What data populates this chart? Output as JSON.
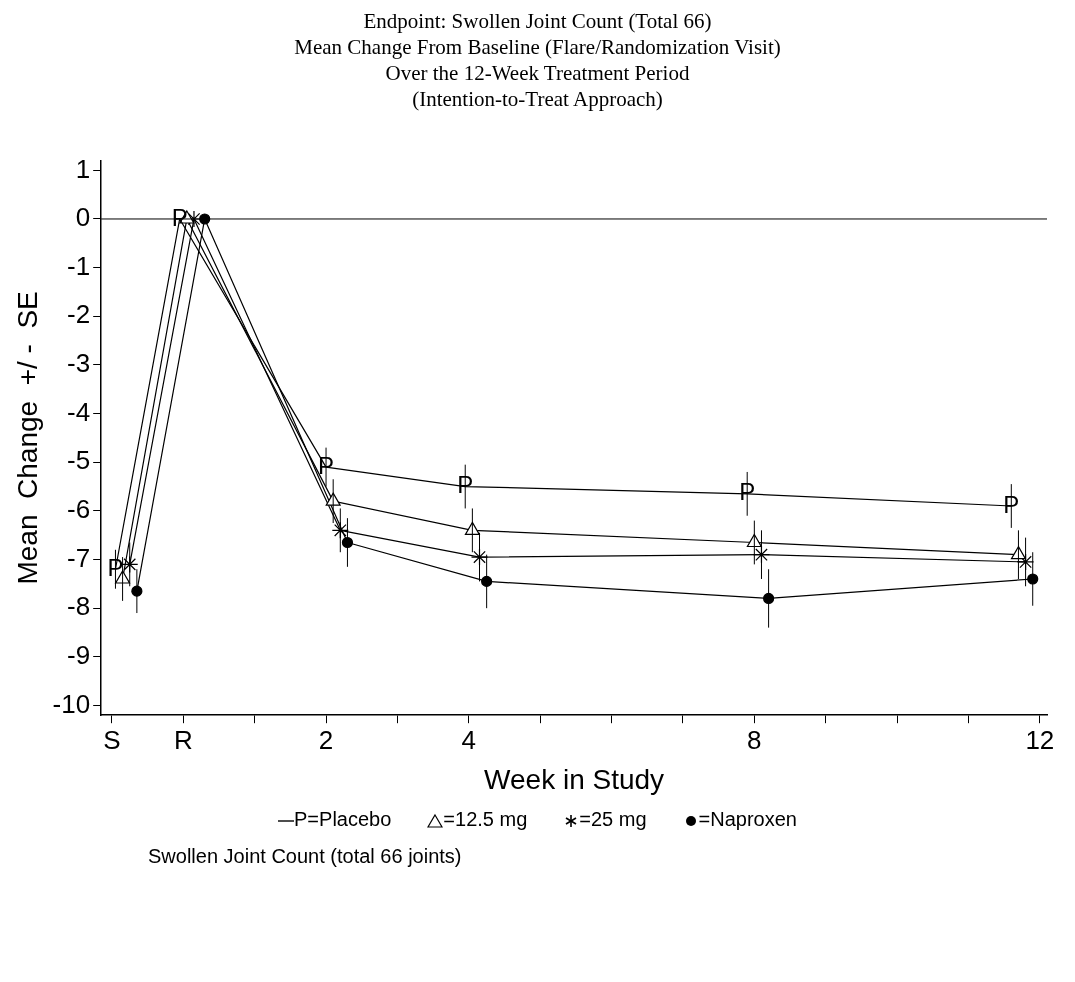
{
  "chart_data": {
    "type": "line",
    "title": "Endpoint:  Swollen Joint Count (Total 66)",
    "subtitle": "Mean Change From Baseline (Flare/Randomization Visit)\nOver the 12-Week Treatment Period\n(Intention-to-Treat Approach)",
    "xlabel": "Week in Study",
    "ylabel": "Mean  Change  +/ -  SE",
    "xlim": [
      -1.15,
      12.1
    ],
    "xticks": [
      {
        "value": -1,
        "label": "S"
      },
      {
        "value": 0,
        "label": "R"
      },
      {
        "value": 1,
        "label": null
      },
      2,
      {
        "value": 3,
        "label": null
      },
      4,
      {
        "value": 5,
        "label": null
      },
      {
        "value": 6,
        "label": null
      },
      {
        "value": 7,
        "label": null
      },
      8,
      {
        "value": 9,
        "label": null
      },
      {
        "value": 10,
        "label": null
      },
      {
        "value": 11,
        "label": null
      },
      12
    ],
    "ylim": [
      -10.2,
      1.2
    ],
    "yticks": [
      -10,
      -9,
      -8,
      -7,
      -6,
      -5,
      -4,
      -3,
      -2,
      -1,
      0,
      1
    ],
    "grid": false,
    "legend": "bottom",
    "ref_lines": [
      {
        "axis": "y",
        "value": 0,
        "color": "#000000"
      }
    ],
    "series": [
      {
        "name": "P=Placebo",
        "color": "#000000",
        "marker": "none",
        "x": [
          -0.95,
          -0.05,
          2.0,
          3.95,
          7.9,
          11.6
        ],
        "values": [
          -7.2,
          0,
          -5.1,
          -5.5,
          -5.65,
          -5.9
        ],
        "errors": [
          0.4,
          null,
          0.4,
          0.45,
          0.45,
          0.45
        ]
      },
      {
        "name": "=12.5 mg",
        "color": "#000000",
        "marker": "triangle",
        "x": [
          -0.85,
          0.05,
          2.1,
          4.05,
          8.0,
          11.7
        ],
        "values": [
          -7.4,
          0,
          -5.8,
          -6.4,
          -6.65,
          -6.9
        ],
        "errors": [
          0.45,
          null,
          0.45,
          0.45,
          0.45,
          0.5
        ]
      },
      {
        "name": "=25 mg",
        "color": "#000000",
        "marker": "cross",
        "x": [
          -0.75,
          0.15,
          2.2,
          4.15,
          8.1,
          11.8
        ],
        "values": [
          -7.1,
          0,
          -6.4,
          -6.95,
          -6.9,
          -7.05
        ],
        "errors": [
          0.45,
          null,
          0.45,
          0.5,
          0.5,
          0.5
        ]
      },
      {
        "name": "=Naproxen",
        "color": "#000000",
        "marker": "circle",
        "x": [
          -0.65,
          0.3,
          2.3,
          4.25,
          8.2,
          11.9
        ],
        "values": [
          -7.65,
          0,
          -6.65,
          -7.45,
          -7.8,
          -7.4
        ],
        "errors": [
          0.45,
          null,
          0.5,
          0.55,
          0.6,
          0.55
        ]
      }
    ],
    "annotations": [
      {
        "text": "P",
        "x": -0.95,
        "y": -7.2
      },
      {
        "text": "P",
        "x": -0.05,
        "y": 0
      },
      {
        "text": "P",
        "x": 2.0,
        "y": -5.1
      },
      {
        "text": "P",
        "x": 3.95,
        "y": -5.5
      },
      {
        "text": "P",
        "x": 7.9,
        "y": -5.65
      },
      {
        "text": "P",
        "x": 11.6,
        "y": -5.9
      },
      "Swollen Joint Count (total 66 joints)"
    ]
  }
}
